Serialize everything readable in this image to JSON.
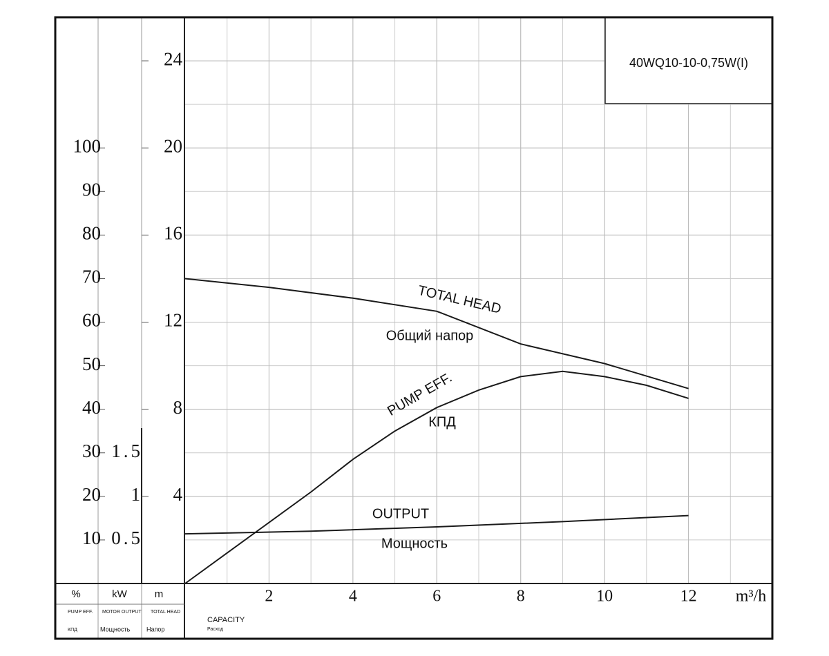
{
  "chart_data": {
    "type": "line",
    "title": "40WQ10-10-0,75W(I)",
    "xlim": [
      0,
      14
    ],
    "xticks": [
      2,
      4,
      6,
      8,
      10,
      12
    ],
    "x_label": "m³/h",
    "x_caption": "CAPACITY",
    "x_caption_ru": "Расход",
    "grid": true,
    "ylim": [
      0,
      26
    ],
    "yticks": [
      4,
      8,
      12,
      16,
      20,
      24
    ],
    "y_label": "m",
    "y_caption": "TOTAL HEAD",
    "y_caption_ru": "Напор",
    "y2lim": [
      0,
      130
    ],
    "y2ticks": [
      10,
      20,
      30,
      40,
      50,
      60,
      70,
      80,
      90,
      100
    ],
    "y2_label": "%",
    "y2_caption": "PUMP EFF.",
    "y2_caption_ru": "КПД",
    "y3lim": [
      0,
      6.5
    ],
    "y3ticks": [
      0.5,
      1,
      1.5
    ],
    "y3_label": "kW",
    "y3_caption": "MOTOR OUTPUT",
    "y3_caption_ru": "Мощность",
    "series": [
      {
        "name": "TOTAL HEAD",
        "name_ru": "Общий напор",
        "axis": "y",
        "color": "#1a1a1a",
        "x": [
          0,
          2,
          4,
          6,
          8,
          10,
          12
        ],
        "values": [
          14,
          13.6,
          13.1,
          12.5,
          11,
          10.1,
          8.95
        ]
      },
      {
        "name": "PUMP EFF.",
        "name_ru": "КПД",
        "axis": "y2",
        "color": "#1a1a1a",
        "x": [
          0,
          1,
          2,
          3,
          4,
          5,
          6,
          7,
          8,
          9,
          10,
          11,
          12
        ],
        "values": [
          0,
          7,
          14,
          21,
          28.5,
          35,
          40.4,
          44.4,
          47.5,
          48.7,
          47.5,
          45.5,
          42.5
        ]
      },
      {
        "name": "OUTPUT",
        "name_ru": "Мощность",
        "axis": "y3",
        "color": "#1a1a1a",
        "x": [
          0,
          3,
          6,
          9,
          12
        ],
        "values": [
          0.57,
          0.6,
          0.65,
          0.71,
          0.78
        ]
      }
    ]
  }
}
